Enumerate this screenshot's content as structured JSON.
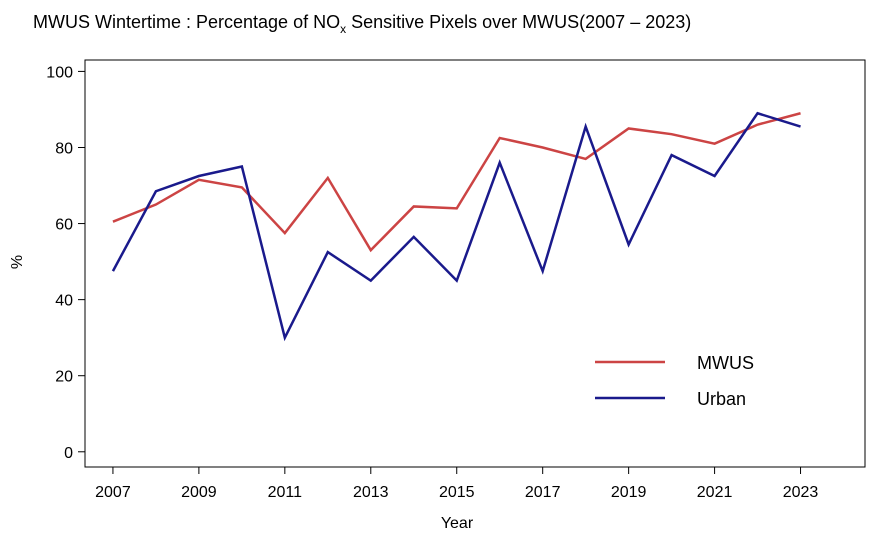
{
  "chart_data": {
    "type": "line",
    "title": {
      "main": "MWUS Wintertime : Percentage of NO",
      "sub": "x",
      "rest": " Sensitive Pixels over MWUS(2007 – 2023)"
    },
    "x_label": "Year",
    "y_label": "%",
    "x": [
      2007,
      2008,
      2009,
      2010,
      2011,
      2012,
      2013,
      2014,
      2015,
      2016,
      2017,
      2018,
      2019,
      2020,
      2021,
      2022,
      2023
    ],
    "series": [
      {
        "name": "MWUS",
        "color": "#cc4444",
        "values": [
          60.5,
          65,
          71.5,
          69.5,
          57.5,
          72,
          53,
          64.5,
          64,
          82.5,
          80,
          77,
          85,
          83.5,
          81,
          86,
          89
        ]
      },
      {
        "name": "Urban",
        "color": "#1a1a8c",
        "values": [
          47.5,
          68.5,
          72.5,
          75,
          30,
          52.5,
          45,
          56.5,
          45,
          76,
          47.5,
          85.5,
          54.5,
          78,
          72.5,
          89,
          85.5
        ]
      }
    ],
    "xlim": [
      2006.35,
      2024.5
    ],
    "ylim": [
      -4,
      103
    ],
    "xticks": [
      2007,
      2009,
      2011,
      2013,
      2015,
      2017,
      2019,
      2021,
      2023
    ],
    "yticks": [
      0,
      20,
      40,
      60,
      80,
      100
    ],
    "legend": "bottom-right"
  }
}
